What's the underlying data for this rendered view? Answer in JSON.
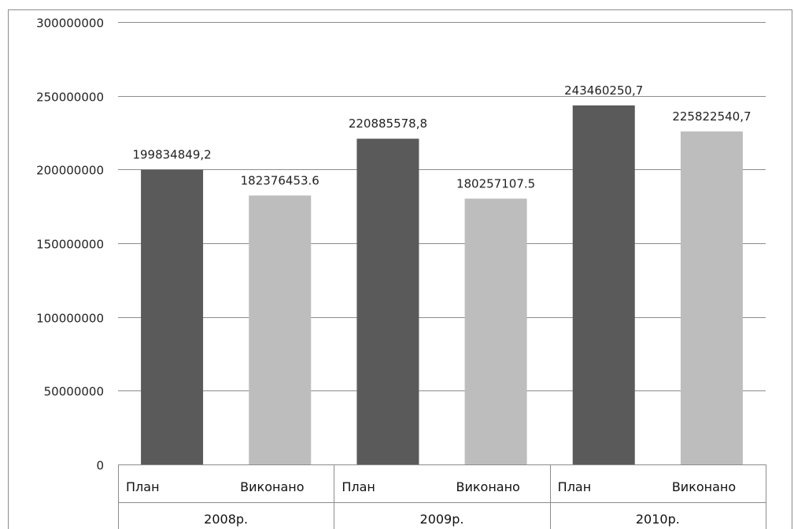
{
  "chart_data": {
    "type": "bar",
    "ylim": [
      0,
      300000000
    ],
    "y_ticks": [
      "300000000",
      "250000000",
      "200000000",
      "150000000",
      "100000000",
      "50000000",
      "0"
    ],
    "y_tick_values": [
      300000000,
      250000000,
      200000000,
      150000000,
      100000000,
      50000000,
      0
    ],
    "grid": true,
    "groups": [
      {
        "label": "2008р.",
        "bars": [
          {
            "category": "План",
            "value": 199834849.2,
            "data_label": "199834849,2",
            "color": "#5a5a5a"
          },
          {
            "category": "Виконано",
            "value": 182376453.6,
            "data_label": "182376453.6",
            "color": "#bdbdbd"
          }
        ]
      },
      {
        "label": "2009р.",
        "bars": [
          {
            "category": "План",
            "value": 220885578.8,
            "data_label": "220885578,8",
            "color": "#5a5a5a"
          },
          {
            "category": "Виконано",
            "value": 180257107.5,
            "data_label": "180257107.5",
            "color": "#bdbdbd"
          }
        ]
      },
      {
        "label": "2010р.",
        "bars": [
          {
            "category": "План",
            "value": 243460250.7,
            "data_label": "243460250,7",
            "color": "#5a5a5a"
          },
          {
            "category": "Виконано",
            "value": 225822540.7,
            "data_label": "225822540,7",
            "color": "#bdbdbd"
          }
        ]
      }
    ]
  }
}
